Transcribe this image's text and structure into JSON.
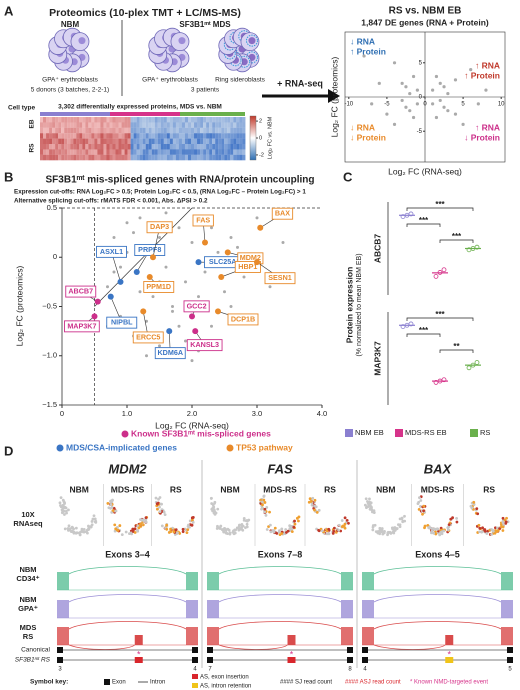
{
  "panel_a": {
    "letter": "A",
    "title": "Proteomics (10-plex TMT + LC/MS-MS)",
    "groups": [
      {
        "name": "NBM",
        "cells": [
          "GPA⁺ erythroblasts"
        ],
        "note": "5 donors (3 batches, 2-2-1)"
      },
      {
        "name": "SF3B1ᵐᵗ MDS",
        "cells": [
          "GPA⁺ erythroblasts",
          "Ring sideroblasts"
        ],
        "note": "3 patients"
      }
    ],
    "arrow_label": "+ RNA-seq",
    "heatmap": {
      "row_header": "Cell type",
      "title": "3,302 differentially expressed proteins, MDS vs. NBM",
      "rows": [
        "EB",
        "RS"
      ],
      "colorbar_label": "Log₂ FC vs. NBM",
      "colorbar_lim": [
        -2.6,
        2.6
      ],
      "colorbar_ticks": [
        2,
        0,
        -2
      ]
    },
    "scatter": {
      "title": "RS vs. NBM EB",
      "subtitle": "1,847 DE genes (RNA + Protein)",
      "x_label": "Log₂ FC (RNA-seq)",
      "y_label": "Log₂ FC (proteomics)",
      "xlim": [
        -10.5,
        10.5
      ],
      "ylim": [
        -9.5,
        9.5
      ],
      "xticks": [
        -10,
        -5,
        0,
        5,
        10
      ],
      "yticks": [
        5,
        0,
        -5
      ],
      "quadrants": [
        {
          "lines": [
            "↓ RNA",
            "↑ Protein"
          ],
          "color": "#2f6fb3"
        },
        {
          "lines": [
            "↑ RNA",
            "↑ Protein"
          ],
          "color": "#c0392b"
        },
        {
          "lines": [
            "↓ RNA",
            "↓ Protein"
          ],
          "color": "#e88a2a"
        },
        {
          "lines": [
            "↑ RNA",
            "↓ Protein"
          ],
          "color": "#cc2f8a"
        }
      ],
      "x": [
        1,
        2,
        3,
        1.5,
        2.5,
        4,
        6,
        8,
        -1,
        -2,
        -3,
        -1.5,
        -2.5,
        -4,
        -6,
        -1,
        -2,
        -3,
        -1.5,
        -2.5,
        -4,
        -5,
        -7,
        1,
        2,
        3,
        1.5,
        2.5,
        4,
        5,
        7,
        -8
      ],
      "y": [
        1,
        2,
        0.5,
        3,
        1.5,
        2.5,
        4,
        1,
        1,
        0.5,
        2,
        3,
        1.5,
        5,
        2,
        -1,
        -2,
        -0.5,
        -3,
        -1.5,
        -4,
        -2.5,
        -1,
        -1,
        -0.5,
        -2,
        -3,
        -1.5,
        -2.5,
        -4,
        -1,
        6
      ]
    }
  },
  "panel_b": {
    "letter": "B",
    "title": "SF3B1ᵐᵗ mis-spliced genes with RNA/protein uncoupling",
    "cutoffs": [
      "Expression cut-offs: RNA Log₂FC > 0.5; Protein Log₂FC < 0.5, (RNA Log₂FC – Protein Log₂FC) > 1",
      "Alternative splicing cut-offs: rMATS FDR < 0.001, Abs. ΔPSI > 0.2"
    ],
    "x_label": "Log₂ FC (RNA-seq)",
    "y_label": "Log₂ FC (proteomics)",
    "xlim": [
      0,
      4
    ],
    "ylim": [
      -1.5,
      0.5
    ],
    "xticks": [
      0,
      {
        "value": 1,
        "label": "1.0"
      },
      {
        "value": 2,
        "label": "2.0"
      },
      {
        "value": 3,
        "label": "3.0"
      },
      {
        "value": 4,
        "label": "4.0"
      }
    ],
    "yticks": [
      {
        "value": 0.5,
        "label": "0.5"
      },
      0,
      {
        "value": -0.5,
        "label": "−0.5"
      },
      {
        "value": -1,
        "label": "−1.0"
      },
      {
        "value": -1.5,
        "label": "−1.5"
      }
    ],
    "background": {
      "color": "#aaaaaa",
      "x": [
        0.6,
        0.7,
        0.8,
        0.9,
        1.0,
        1.1,
        1.2,
        1.3,
        1.4,
        1.5,
        1.6,
        1.7,
        1.8,
        1.9,
        2.0,
        2.1,
        2.2,
        2.3,
        2.4,
        2.5,
        2.6,
        2.8,
        3.0,
        3.2,
        0.7,
        0.9,
        1.1,
        1.3,
        1.5,
        1.7,
        1.9,
        2.1,
        2.3,
        2.6,
        1.0,
        1.2,
        1.4,
        1.6,
        1.8,
        2.0,
        0.8,
        1.5,
        2.7,
        3.4,
        1.3
      ],
      "y": [
        0.1,
        -0.3,
        0.2,
        -0.1,
        0.05,
        0.25,
        -0.35,
        0.1,
        -0.4,
        0.2,
        -0.1,
        -0.5,
        0.3,
        -0.25,
        0.15,
        -0.4,
        -0.15,
        0.3,
        0.05,
        -0.35,
        0.2,
        -0.2,
        0.4,
        -0.3,
        -0.7,
        -0.6,
        -0.8,
        -0.65,
        -0.9,
        -0.55,
        -0.85,
        -0.95,
        -0.7,
        -0.5,
        0.35,
        0.4,
        0.3,
        0.45,
        -0.7,
        -1.05,
        -0.15,
        -0.25,
        0.1,
        0.15,
        -1.0
      ]
    },
    "series": [
      {
        "name": "Known SF3B1ᵐᵗ mis-spliced genes",
        "color": "#cc2f8a",
        "labels": [
          "ABCB7",
          "MAP3K7",
          "GCC2",
          "KANSL3"
        ],
        "x": [
          0.55,
          0.5,
          2.0,
          2.05
        ],
        "y": [
          -0.45,
          -0.6,
          -0.6,
          -0.75
        ]
      },
      {
        "name": "MDS/CSA-implicated genes",
        "color": "#3a75c4",
        "labels": [
          "ASXL1",
          "PRPF8",
          "NIPBL",
          "SLC25A38",
          "KDM6A"
        ],
        "x": [
          0.9,
          1.15,
          0.75,
          2.1,
          1.65
        ],
        "y": [
          -0.25,
          -0.15,
          -0.4,
          -0.05,
          -0.75
        ]
      },
      {
        "name": "TP53 pathway",
        "color": "#e88a2a",
        "labels": [
          "DAP3",
          "PPM1D",
          "ERCC5",
          "FAS",
          "BAX",
          "MDM2",
          "HBP1",
          "SESN1",
          "DCP1B"
        ],
        "x": [
          1.4,
          1.35,
          1.25,
          2.2,
          3.05,
          2.55,
          2.45,
          3.0,
          2.4
        ],
        "y": [
          0.0,
          -0.2,
          -0.55,
          0.15,
          0.3,
          0.05,
          -0.2,
          -0.05,
          -0.55
        ]
      }
    ]
  },
  "panel_c": {
    "letter": "C",
    "y_label": [
      "Protein expression",
      "(% normalized to mean NBM EB)"
    ],
    "ylim": [
      40,
      110
    ],
    "groups": [
      {
        "name": "NBM EB",
        "color": "#8a7fd0"
      },
      {
        "name": "MDS-RS EB",
        "color": "#d6338a"
      },
      {
        "name": "RS",
        "color": "#6ab04c"
      }
    ],
    "plots": [
      {
        "gene": "ABCB7",
        "values": [
          [
            99,
            100,
            101
          ],
          [
            54,
            57,
            59
          ],
          [
            74,
            75,
            76
          ]
        ],
        "significance": [
          "***",
          "***",
          "***"
        ]
      },
      {
        "gene": "MAP3K7",
        "values": [
          [
            99,
            100,
            101
          ],
          [
            57,
            58,
            59
          ],
          [
            68,
            70,
            72
          ]
        ],
        "significance": [
          "***",
          "***",
          "**"
        ]
      }
    ]
  },
  "panel_d": {
    "letter": "D",
    "umap_label": [
      "10X",
      "RNAseq"
    ],
    "track_labels": [
      [
        "NBM",
        "CD34⁺"
      ],
      [
        "NBM",
        "GPA⁺"
      ],
      [
        "MDS",
        "RS"
      ]
    ],
    "structure_labels": [
      "Canonical",
      "SF3B1ᵐᵗ RS"
    ],
    "columns": [
      {
        "gene": "MDM2",
        "groups": [
          "NBM",
          "MDS-RS",
          "RS"
        ],
        "exons_title": "Exons 3–4",
        "exon_numbers": [
          "3",
          "4"
        ]
      },
      {
        "gene": "FAS",
        "groups": [
          "NBM",
          "MDS-RS",
          "RS"
        ],
        "exons_title": "Exons 7–8",
        "exon_numbers": [
          "7",
          "8"
        ]
      },
      {
        "gene": "BAX",
        "groups": [
          "NBM",
          "MDS-RS",
          "RS"
        ],
        "exons_title": "Exons 4–5",
        "exon_numbers": [
          "4",
          "5"
        ]
      }
    ],
    "key": {
      "title": "Symbol key:",
      "items": [
        "Exon",
        "Intron",
        "AS, exon insertion",
        "AS, intron retention",
        "#### SJ read count",
        "#### ASJ read count",
        "* Known NMD-targeted event"
      ]
    }
  }
}
